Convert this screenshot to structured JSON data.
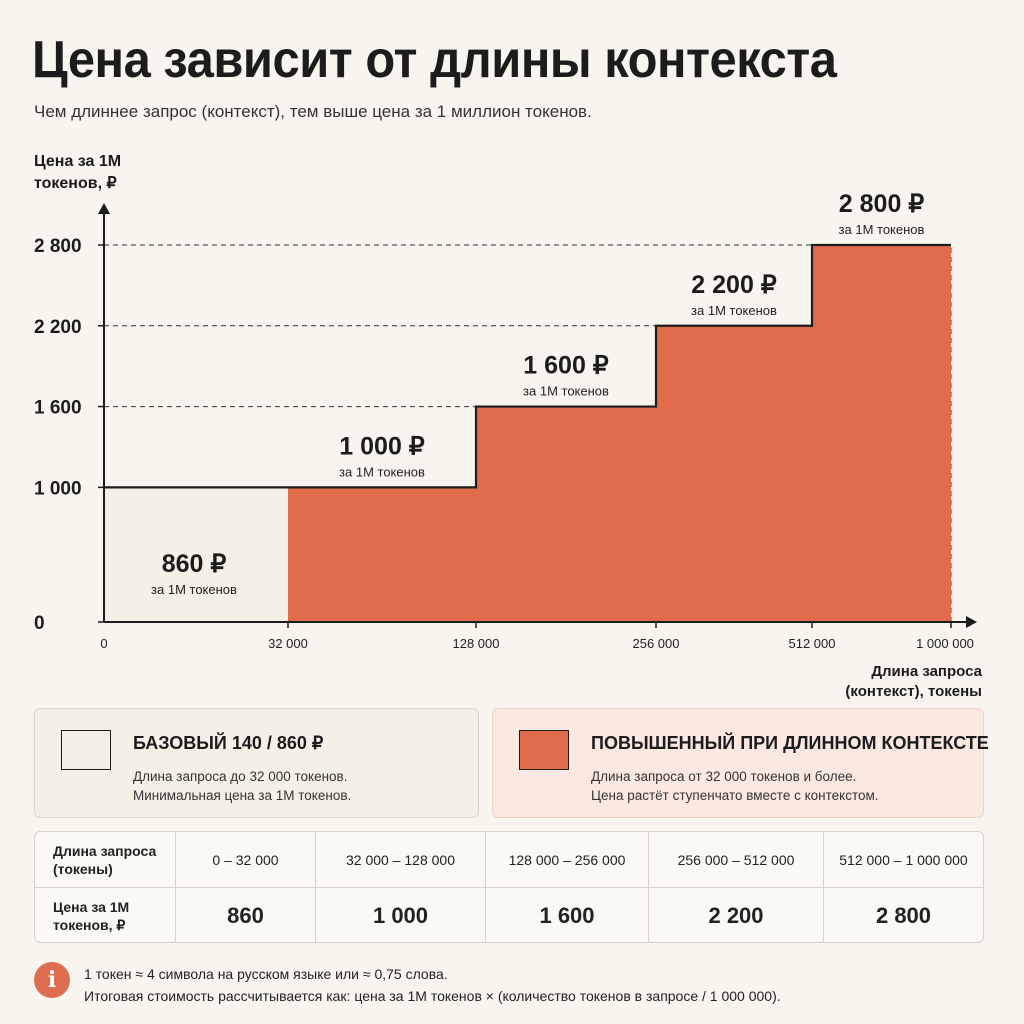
{
  "title": "Цена зависит от длины контекста",
  "subtitle": "Чем длиннее запрос (контекст), тем выше цена за 1 миллион токенов.",
  "colors": {
    "base": "#f4f0e6",
    "high": "#e06c4b",
    "accent": "#dd6d4e",
    "text": "#1c1c1c"
  },
  "chart_data": {
    "type": "area",
    "step": true,
    "ylabel": [
      "Цена за 1М",
      "токенов, ₽"
    ],
    "xlabel": [
      "Длина запроса",
      "(контекст), токены"
    ],
    "y_ticks": [
      0,
      1000,
      1600,
      2200,
      2800
    ],
    "y_tick_labels": [
      "0",
      "1 000",
      "1 600",
      "2 200",
      "2 800"
    ],
    "x_tick_labels": [
      "0",
      "32 000",
      "128 000",
      "256 000",
      "512 000",
      "1 000 000"
    ],
    "ylim": [
      0,
      2800
    ],
    "grid": "dashed reference lines at step prices",
    "steps": [
      {
        "from": 0,
        "to": 32000,
        "value": 860,
        "label": "860 ₽",
        "sublabel": "за 1М токенов",
        "tier": "base"
      },
      {
        "from": 32000,
        "to": 128000,
        "value": 1000,
        "label": "1 000 ₽",
        "sublabel": "за 1М токенов",
        "tier": "high"
      },
      {
        "from": 128000,
        "to": 256000,
        "value": 1600,
        "label": "1 600 ₽",
        "sublabel": "за 1М токенов",
        "tier": "high"
      },
      {
        "from": 256000,
        "to": 512000,
        "value": 2200,
        "label": "2 200 ₽",
        "sublabel": "за 1М токенов",
        "tier": "high"
      },
      {
        "from": 512000,
        "to": 1000000,
        "value": 2800,
        "label": "2 800 ₽",
        "sublabel": "за 1М токенов",
        "tier": "high"
      }
    ]
  },
  "legend": {
    "base": {
      "title": "БАЗОВЫЙ 140 / 860 ₽",
      "line1": "Длина запроса до 32 000 токенов.",
      "line2": "Минимальная цена за 1М токенов."
    },
    "high": {
      "title": "ПОВЫШЕННЫЙ ПРИ ДЛИННОМ КОНТЕКСТЕ",
      "line1": "Длина запроса от 32 000 токенов и более.",
      "line2": "Цена растёт ступенчато вместе с контекстом."
    }
  },
  "table": {
    "row1_header": "Длина запроса (токены)",
    "row2_header": "Цена за 1М токенов, ₽",
    "ranges": [
      "0 – 32 000",
      "32 000 – 128 000",
      "128 000 – 256 000",
      "256 000 – 512 000",
      "512 000 – 1 000 000"
    ],
    "prices": [
      "860",
      "1 000",
      "1 600",
      "2 200",
      "2 800"
    ]
  },
  "info": {
    "icon": "info-icon",
    "icon_glyph": "i",
    "line1": "1 токен ≈ 4 символа на русском языке или ≈ 0,75 слова.",
    "line2": "Итоговая стоимость рассчитывается как: цена за 1М токенов × (количество токенов в запросе / 1 000 000)."
  }
}
